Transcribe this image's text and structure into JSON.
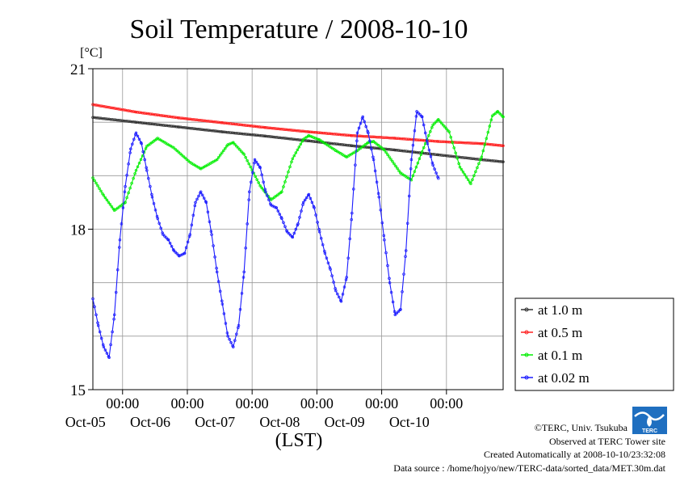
{
  "chart_data": {
    "type": "line",
    "title": "Soil Temperature / 2008-10-10",
    "ylabel": "[°C]",
    "xlabel": "(LST)",
    "ylim": [
      15,
      21
    ],
    "yticks": [
      "21",
      "18",
      "15"
    ],
    "x_start_hours": -8,
    "x_end_hours": 144,
    "x_major_ticks": [
      {
        "time": "00:00",
        "date": "Oct-05"
      },
      {
        "time": "00:00",
        "date": "Oct-06"
      },
      {
        "time": "00:00",
        "date": "Oct-07"
      },
      {
        "time": "00:00",
        "date": "Oct-08"
      },
      {
        "time": "00:00",
        "date": "Oct-09"
      },
      {
        "time": "00:00",
        "date": "Oct-10"
      }
    ],
    "grid": true,
    "legend_position": "right",
    "series": [
      {
        "name": "at 1.0 m",
        "color": "#333333",
        "points": [
          [
            -8,
            20.09
          ],
          [
            8,
            20.0
          ],
          [
            24,
            19.91
          ],
          [
            40,
            19.82
          ],
          [
            56,
            19.74
          ],
          [
            72,
            19.65
          ],
          [
            88,
            19.56
          ],
          [
            104,
            19.48
          ],
          [
            120,
            19.39
          ],
          [
            136,
            19.3
          ],
          [
            144,
            19.26
          ]
        ]
      },
      {
        "name": "at 0.5 m",
        "color": "#ff2020",
        "points": [
          [
            -8,
            20.33
          ],
          [
            8,
            20.19
          ],
          [
            24,
            20.08
          ],
          [
            40,
            19.99
          ],
          [
            56,
            19.9
          ],
          [
            72,
            19.82
          ],
          [
            88,
            19.75
          ],
          [
            104,
            19.7
          ],
          [
            120,
            19.64
          ],
          [
            136,
            19.6
          ],
          [
            144,
            19.56
          ]
        ]
      },
      {
        "name": "at 0.1 m",
        "color": "#00ee00",
        "points": [
          [
            -8,
            18.96
          ],
          [
            -4,
            18.63
          ],
          [
            0,
            18.35
          ],
          [
            4,
            18.5
          ],
          [
            8,
            19.1
          ],
          [
            12,
            19.55
          ],
          [
            16,
            19.7
          ],
          [
            22,
            19.52
          ],
          [
            28,
            19.25
          ],
          [
            32,
            19.13
          ],
          [
            38,
            19.3
          ],
          [
            42,
            19.58
          ],
          [
            44,
            19.62
          ],
          [
            48,
            19.4
          ],
          [
            54,
            18.81
          ],
          [
            58,
            18.55
          ],
          [
            62,
            18.7
          ],
          [
            66,
            19.32
          ],
          [
            70,
            19.68
          ],
          [
            72,
            19.75
          ],
          [
            76,
            19.67
          ],
          [
            82,
            19.47
          ],
          [
            86,
            19.35
          ],
          [
            90,
            19.47
          ],
          [
            94,
            19.62
          ],
          [
            96,
            19.64
          ],
          [
            100,
            19.48
          ],
          [
            106,
            19.05
          ],
          [
            110,
            18.92
          ],
          [
            114,
            19.45
          ],
          [
            118,
            19.95
          ],
          [
            120,
            20.05
          ],
          [
            124,
            19.82
          ],
          [
            128,
            19.16
          ],
          [
            132,
            18.85
          ],
          [
            136,
            19.35
          ],
          [
            140,
            20.12
          ],
          [
            142,
            20.2
          ],
          [
            144,
            20.1
          ]
        ]
      },
      {
        "name": "at 0.02 m",
        "color": "#1a1aff",
        "points": [
          [
            -8,
            16.7
          ],
          [
            -6,
            16.2
          ],
          [
            -4,
            15.8
          ],
          [
            -2,
            15.6
          ],
          [
            0,
            16.4
          ],
          [
            2,
            17.8
          ],
          [
            4,
            18.8
          ],
          [
            6,
            19.5
          ],
          [
            8,
            19.8
          ],
          [
            10,
            19.6
          ],
          [
            12,
            19.1
          ],
          [
            14,
            18.6
          ],
          [
            16,
            18.2
          ],
          [
            18,
            17.9
          ],
          [
            20,
            17.8
          ],
          [
            22,
            17.6
          ],
          [
            24,
            17.5
          ],
          [
            26,
            17.55
          ],
          [
            28,
            17.9
          ],
          [
            30,
            18.5
          ],
          [
            32,
            18.7
          ],
          [
            34,
            18.5
          ],
          [
            36,
            17.9
          ],
          [
            38,
            17.2
          ],
          [
            40,
            16.6
          ],
          [
            42,
            16.0
          ],
          [
            44,
            15.8
          ],
          [
            46,
            16.2
          ],
          [
            48,
            17.2
          ],
          [
            50,
            18.7
          ],
          [
            52,
            19.3
          ],
          [
            54,
            19.15
          ],
          [
            56,
            18.7
          ],
          [
            58,
            18.45
          ],
          [
            60,
            18.4
          ],
          [
            62,
            18.2
          ],
          [
            64,
            17.95
          ],
          [
            66,
            17.85
          ],
          [
            68,
            18.1
          ],
          [
            70,
            18.5
          ],
          [
            72,
            18.65
          ],
          [
            74,
            18.4
          ],
          [
            76,
            17.95
          ],
          [
            78,
            17.55
          ],
          [
            80,
            17.25
          ],
          [
            82,
            16.85
          ],
          [
            84,
            16.65
          ],
          [
            86,
            17.1
          ],
          [
            88,
            18.3
          ],
          [
            90,
            19.8
          ],
          [
            92,
            20.1
          ],
          [
            94,
            19.8
          ],
          [
            96,
            19.3
          ],
          [
            98,
            18.6
          ],
          [
            100,
            17.8
          ],
          [
            102,
            17.0
          ],
          [
            104,
            16.4
          ],
          [
            106,
            16.5
          ],
          [
            108,
            17.6
          ],
          [
            110,
            19.3
          ],
          [
            112,
            20.2
          ],
          [
            114,
            20.1
          ],
          [
            116,
            19.6
          ],
          [
            118,
            19.2
          ],
          [
            120,
            18.95
          ]
        ]
      }
    ]
  },
  "legend": {
    "items": [
      "at 1.0 m",
      "at 0.5 m",
      "at 0.1 m",
      "at 0.02 m"
    ]
  },
  "credits": {
    "copyright": "©TERC, Univ. Tsukuba",
    "observed": "Observed at TERC Tower site",
    "created": "Created Automatically at 2008-10-10/23:32:08",
    "source": "Data source : /home/hojyo/new/TERC-data/sorted_data/MET.30m.dat",
    "logo_text": "TERC"
  }
}
